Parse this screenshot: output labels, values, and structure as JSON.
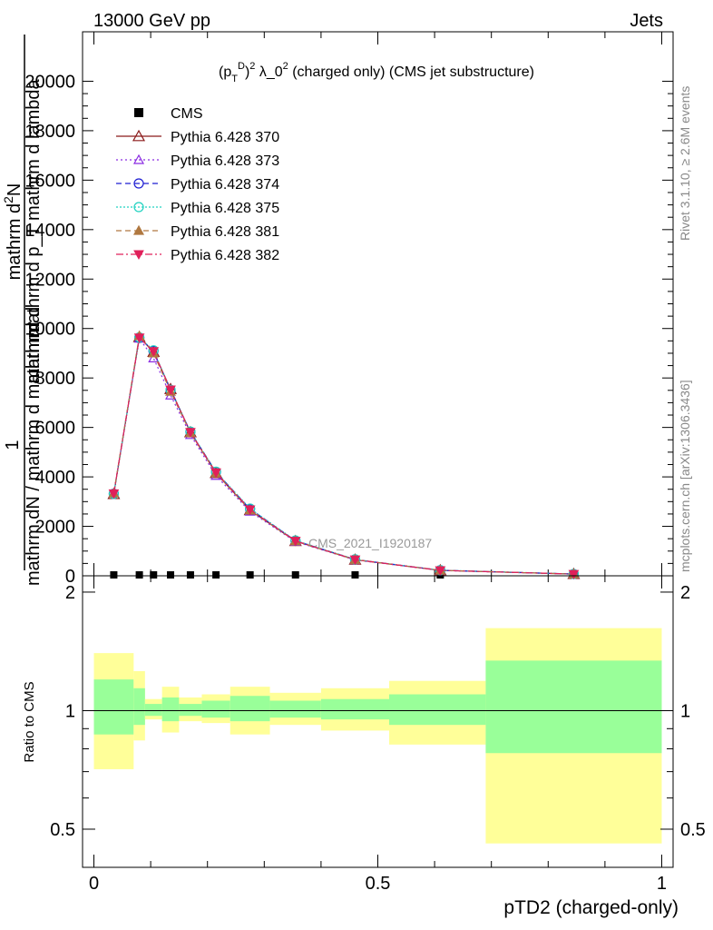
{
  "header": {
    "left": "13000 GeV pp",
    "right": "Jets"
  },
  "plot_title": "(p_T^D)^2 λ_0^2 (charged only) (CMS jet substructure)",
  "side_labels": {
    "rivet": "Rivet 3.1.10, ≥ 2.6M events",
    "mcplots": "mcplots.cern.ch [arXiv:1306.3436]"
  },
  "watermark": "CMS_2021_I1920187",
  "ylabel_main": {
    "top": "mathrm d^2N",
    "bottom": "mathrm d p_T mathrm d lambda",
    "prefix": "1",
    "denominator": "mathrm dN / mathrm d mathrm d",
    "extra": "mathrm d"
  },
  "ylabel_ratio": "Ratio to CMS",
  "xlabel": "pTD2 (charged-only)",
  "colors": {
    "band_yellow": "#ffff99",
    "band_green": "#99ff99",
    "s370": "#8b1a1a",
    "s373": "#8a2be2",
    "s374": "#1e1ed2",
    "s375": "#20d2c0",
    "s381": "#b07840",
    "s382": "#e0205a"
  },
  "chart_data": {
    "type": "line",
    "xlim": [
      -0.02,
      1.02
    ],
    "main_ylim": [
      0,
      22000
    ],
    "main_yticks": [
      0,
      2000,
      4000,
      6000,
      8000,
      10000,
      12000,
      14000,
      16000,
      18000,
      20000
    ],
    "main_ytick_labels": [
      "0",
      "2000",
      "4000",
      "6000",
      "8000",
      "10000",
      "12000",
      "14000",
      "16000",
      "18000",
      "20000"
    ],
    "ratio_ylim": [
      0.4,
      2.2
    ],
    "ratio_yticks": [
      0.5,
      1,
      2
    ],
    "ratio_ytick_labels": [
      "0.5",
      "1",
      "2"
    ],
    "xticks": [
      0,
      0.5,
      1
    ],
    "xtick_labels": [
      "0",
      "0.5",
      "1"
    ],
    "x": [
      0.035,
      0.08,
      0.105,
      0.135,
      0.17,
      0.215,
      0.275,
      0.355,
      0.46,
      0.61,
      0.845
    ],
    "bin_edges": [
      0.0,
      0.07,
      0.09,
      0.12,
      0.15,
      0.19,
      0.24,
      0.31,
      0.4,
      0.52,
      0.69,
      1.0
    ],
    "cms": [
      0,
      0,
      0,
      0,
      0,
      0,
      0,
      0,
      0,
      0,
      0
    ],
    "series": [
      {
        "name": "CMS",
        "values": [
          0,
          0,
          0,
          0,
          0,
          0,
          0,
          0,
          0,
          0,
          0
        ]
      },
      {
        "name": "Pythia 6.428 370",
        "values": [
          3300,
          9650,
          9050,
          7550,
          5800,
          4150,
          2650,
          1400,
          650,
          220,
          70
        ]
      },
      {
        "name": "Pythia 6.428 373",
        "values": [
          3350,
          9600,
          8800,
          7300,
          5700,
          4050,
          2600,
          1380,
          640,
          215,
          68
        ]
      },
      {
        "name": "Pythia 6.428 374",
        "values": [
          3320,
          9620,
          9100,
          7500,
          5820,
          4200,
          2700,
          1420,
          660,
          225,
          72
        ]
      },
      {
        "name": "Pythia 6.428 375",
        "values": [
          3310,
          9640,
          9120,
          7520,
          5830,
          4210,
          2720,
          1430,
          665,
          228,
          73
        ]
      },
      {
        "name": "Pythia 6.428 381",
        "values": [
          3340,
          9700,
          9000,
          7450,
          5780,
          4150,
          2650,
          1400,
          650,
          220,
          70
        ]
      },
      {
        "name": "Pythia 6.428 382",
        "values": [
          3330,
          9630,
          9080,
          7530,
          5810,
          4180,
          2680,
          1410,
          655,
          222,
          71
        ]
      }
    ],
    "ratio_bands": {
      "yellow_lo": [
        0.71,
        0.84,
        0.95,
        0.88,
        0.94,
        0.93,
        0.87,
        0.92,
        0.89,
        0.82,
        0.46
      ],
      "yellow_hi": [
        1.4,
        1.26,
        1.07,
        1.15,
        1.08,
        1.1,
        1.15,
        1.11,
        1.14,
        1.19,
        1.62
      ],
      "green_lo": [
        0.87,
        0.92,
        0.97,
        0.94,
        0.97,
        0.96,
        0.94,
        0.96,
        0.95,
        0.92,
        0.78
      ],
      "green_hi": [
        1.2,
        1.14,
        1.04,
        1.08,
        1.04,
        1.06,
        1.09,
        1.06,
        1.07,
        1.1,
        1.34
      ]
    }
  }
}
